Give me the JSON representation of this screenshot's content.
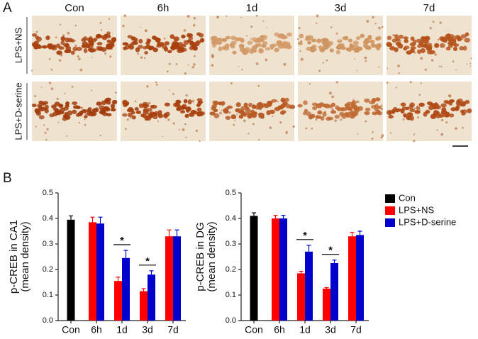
{
  "figure": {
    "panel_a": {
      "label": "A",
      "columns": [
        "Con",
        "6h",
        "1d",
        "3d",
        "7d"
      ],
      "rows": [
        "LPS+NS",
        "LPS+D-serine"
      ]
    },
    "panel_b": {
      "label": "B"
    }
  },
  "chart_data": [
    {
      "type": "bar",
      "ylabel": [
        "p-CREB in CA1",
        "(mean density)"
      ],
      "categories": [
        "Con",
        "6h",
        "1d",
        "3d",
        "7d"
      ],
      "series": [
        {
          "name": "Con",
          "color": "#000000",
          "values": [
            0.395,
            null,
            null,
            null,
            null
          ],
          "errors": [
            0.015,
            null,
            null,
            null,
            null
          ]
        },
        {
          "name": "LPS+NS",
          "color": "#ff0000",
          "values": [
            null,
            0.385,
            0.155,
            0.115,
            0.33
          ],
          "errors": [
            null,
            0.02,
            0.015,
            0.01,
            0.025
          ]
        },
        {
          "name": "LPS+D-serine",
          "color": "#0000cc",
          "values": [
            null,
            0.38,
            0.245,
            0.18,
            0.33
          ],
          "errors": [
            null,
            0.025,
            0.03,
            0.015,
            0.025
          ]
        }
      ],
      "ylim": [
        0,
        0.5
      ],
      "yticks": [
        {
          "value": 0,
          "label": "0.0"
        },
        0.1,
        0.2,
        0.3,
        0.4,
        0.5
      ],
      "annotations": [
        {
          "text": "*",
          "x": "1d"
        },
        {
          "text": "*",
          "x": "3d"
        }
      ]
    },
    {
      "type": "bar",
      "ylabel": [
        "p-CREB in DG",
        "(mean density)"
      ],
      "categories": [
        "Con",
        "6h",
        "1d",
        "3d",
        "7d"
      ],
      "series": [
        {
          "name": "Con",
          "color": "#000000",
          "values": [
            0.41,
            null,
            null,
            null,
            null
          ],
          "errors": [
            0.012,
            null,
            null,
            null,
            null
          ]
        },
        {
          "name": "LPS+NS",
          "color": "#ff0000",
          "values": [
            null,
            0.4,
            0.185,
            0.125,
            0.33
          ],
          "errors": [
            null,
            0.012,
            0.008,
            0.004,
            0.015
          ]
        },
        {
          "name": "LPS+D-serine",
          "color": "#0000cc",
          "values": [
            null,
            0.4,
            0.27,
            0.225,
            0.335
          ],
          "errors": [
            null,
            0.012,
            0.025,
            0.012,
            0.015
          ]
        }
      ],
      "ylim": [
        0,
        0.5
      ],
      "yticks": [
        {
          "value": 0,
          "label": "0.0"
        },
        0.1,
        0.2,
        0.3,
        0.4,
        0.5
      ],
      "annotations": [
        {
          "text": "*",
          "x": "1d"
        },
        {
          "text": "*",
          "x": "3d"
        }
      ],
      "legend": "right"
    }
  ]
}
